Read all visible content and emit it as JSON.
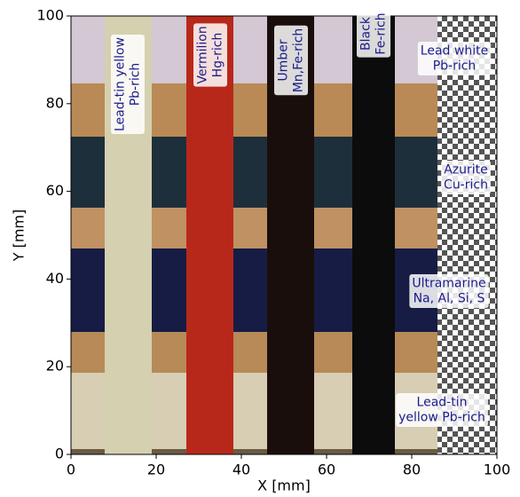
{
  "chart_data": {
    "type": "image",
    "xlabel": "X [mm]",
    "ylabel": "Y [mm]",
    "xlim": [
      0,
      100
    ],
    "ylim": [
      0,
      100
    ],
    "xticks": [
      0,
      20,
      40,
      60,
      80,
      100
    ],
    "yticks": [
      0,
      20,
      40,
      60,
      80,
      100
    ],
    "annotations": [
      [
        "Lead-tin yellow",
        "Pb-rich"
      ],
      [
        "Vermilion",
        "Hg-rich"
      ],
      [
        "Umber",
        "Mn,Fe-rich"
      ],
      [
        "Black",
        "Fe-rich"
      ],
      [
        "Lead white",
        "Pb-rich"
      ],
      [
        "Azurite",
        "Cu-rich"
      ],
      [
        "Ultramarine",
        "Na, Al, Si, S"
      ],
      [
        "Lead-tin",
        "yellow Pb-rich"
      ]
    ]
  }
}
